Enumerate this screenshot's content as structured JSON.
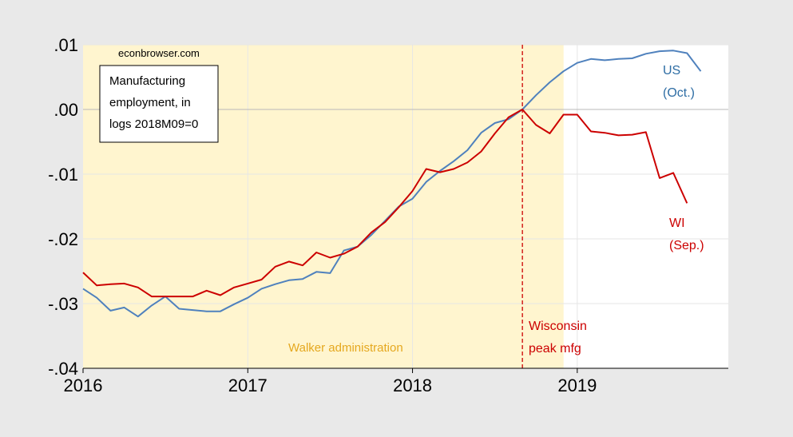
{
  "chart_data": {
    "type": "line",
    "source": "econbrowser.com",
    "title_lines": [
      "Manufacturing",
      "employment, in",
      "logs 2018M09=0"
    ],
    "xlim": [
      2016,
      2019.917
    ],
    "ylim": [
      -0.04,
      0.01
    ],
    "x_ticks": [
      {
        "value": 2016,
        "label": "2016"
      },
      {
        "value": 2017,
        "label": "2017"
      },
      {
        "value": 2018,
        "label": "2018"
      },
      {
        "value": 2019,
        "label": "2019"
      }
    ],
    "y_ticks": [
      {
        "value": 0.01,
        "label": ".01"
      },
      {
        "value": 0.0,
        "label": ".00"
      },
      {
        "value": -0.01,
        "label": "-.01"
      },
      {
        "value": -0.02,
        "label": "-.02"
      },
      {
        "value": -0.03,
        "label": "-.03"
      },
      {
        "value": -0.04,
        "label": "-.04"
      }
    ],
    "zero_line": 0,
    "grid": true,
    "shaded_region": {
      "start": 2016,
      "end": 2018.917,
      "label": "Walker administration",
      "color": "#fff5cf",
      "label_color": "#e5a81f"
    },
    "vertical_marker": {
      "x": 2018.667,
      "label_lines": [
        "Wisconsin",
        "peak mfg"
      ],
      "color": "#cc0000"
    },
    "series": [
      {
        "key": "us",
        "label_lines": [
          "US",
          "(Oct.)"
        ],
        "color": "#4f81bd",
        "x_start": 2016,
        "step": 0.08333,
        "values": [
          -0.0277,
          -0.0291,
          -0.0311,
          -0.0306,
          -0.032,
          -0.0303,
          -0.0289,
          -0.0308,
          -0.031,
          -0.0312,
          -0.0312,
          -0.0301,
          -0.0291,
          -0.0277,
          -0.027,
          -0.0264,
          -0.0262,
          -0.0251,
          -0.0253,
          -0.0218,
          -0.0212,
          -0.0194,
          -0.0172,
          -0.015,
          -0.0138,
          -0.0112,
          -0.0095,
          -0.008,
          -0.0063,
          -0.0036,
          -0.0021,
          -0.0015,
          0.0,
          0.0022,
          0.0042,
          0.0059,
          0.0072,
          0.0078,
          0.0076,
          0.0078,
          0.0079,
          0.0086,
          0.009,
          0.0091,
          0.0087,
          0.0059
        ]
      },
      {
        "key": "wi",
        "label_lines": [
          "WI",
          "(Sep.)"
        ],
        "color": "#cc0000",
        "x_start": 2016,
        "step": 0.08333,
        "values": [
          -0.0252,
          -0.0272,
          -0.027,
          -0.0269,
          -0.0275,
          -0.0289,
          -0.0289,
          -0.0289,
          -0.0289,
          -0.028,
          -0.0287,
          -0.0275,
          -0.0269,
          -0.0263,
          -0.0243,
          -0.0235,
          -0.0241,
          -0.0221,
          -0.0229,
          -0.0223,
          -0.0212,
          -0.019,
          -0.0174,
          -0.0151,
          -0.0126,
          -0.0092,
          -0.0097,
          -0.0092,
          -0.0082,
          -0.0065,
          -0.0037,
          -0.0012,
          0.0,
          -0.0024,
          -0.0037,
          -0.0008,
          -0.0008,
          -0.0034,
          -0.0036,
          -0.004,
          -0.0039,
          -0.0035,
          -0.0106,
          -0.0098,
          -0.0145
        ]
      }
    ]
  }
}
